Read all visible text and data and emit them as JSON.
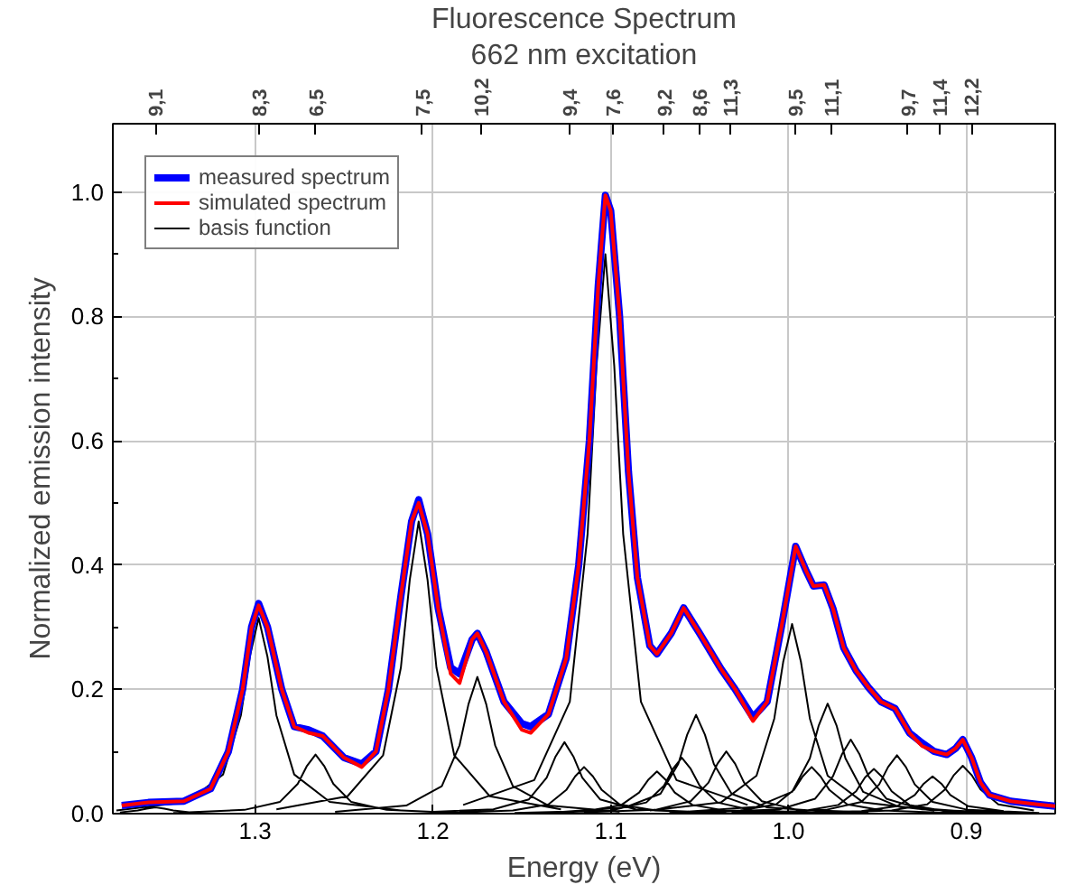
{
  "chart_data": {
    "type": "line",
    "title": "Fluorescence Spectrum",
    "subtitle": "662 nm excitation",
    "xlabel": "Energy (eV)",
    "ylabel": "Normalized emission intensity",
    "xlim": [
      1.38,
      0.85
    ],
    "ylim": [
      0,
      1.11
    ],
    "xticks": [
      1.3,
      1.2,
      1.1,
      {
        "value": 1.0,
        "label": "1.0"
      },
      0.9
    ],
    "yticks": [
      {
        "value": 0,
        "label": "0.0"
      },
      {
        "value": 0.1,
        "label": null
      },
      0.2,
      {
        "value": 0.3,
        "label": null
      },
      0.4,
      {
        "value": 0.5,
        "label": null
      },
      0.6,
      {
        "value": 0.7,
        "label": null
      },
      0.8,
      {
        "value": 0.9,
        "label": null
      },
      {
        "value": 1.0,
        "label": "1.0"
      }
    ],
    "annotations": [
      {
        "text": "9,1",
        "x": 1.356
      },
      {
        "text": "8,3",
        "x": 1.298
      },
      {
        "text": "6,5",
        "x": 1.266
      },
      {
        "text": "7,5",
        "x": 1.206
      },
      {
        "text": "10,2",
        "x": 1.173
      },
      {
        "text": "9,4",
        "x": 1.123
      },
      {
        "text": "7,6",
        "x": 1.099
      },
      {
        "text": "9,2",
        "x": 1.07
      },
      {
        "text": "8,6",
        "x": 1.05
      },
      {
        "text": "11,3",
        "x": 1.033
      },
      {
        "text": "9,5",
        "x": 0.996
      },
      {
        "text": "11,1",
        "x": 0.976
      },
      {
        "text": "9,7",
        "x": 0.933
      },
      {
        "text": "11,4",
        "x": 0.915
      },
      {
        "text": "12,2",
        "x": 0.897
      }
    ],
    "grid": true,
    "legend": "top left",
    "series": [
      {
        "name": "basis function",
        "color": "#000000",
        "x": [
          1.336,
          1.346,
          1.351,
          1.356,
          1.361,
          1.366,
          1.376,
          null,
          1.218,
          1.258,
          1.278,
          1.288,
          1.293,
          1.298,
          1.303,
          1.308,
          1.318,
          1.338,
          1.378,
          null,
          1.186,
          1.226,
          1.246,
          1.256,
          1.261,
          1.266,
          1.271,
          1.276,
          1.286,
          1.306,
          1.346,
          null,
          1.128,
          1.168,
          1.188,
          1.198,
          1.203,
          1.208,
          1.213,
          1.218,
          1.228,
          1.248,
          1.288,
          null,
          1.095,
          1.135,
          1.155,
          1.165,
          1.17,
          1.175,
          1.18,
          1.185,
          1.195,
          1.215,
          1.255,
          null,
          1.046,
          1.086,
          1.106,
          1.116,
          1.121,
          1.126,
          1.131,
          1.136,
          1.146,
          1.166,
          1.206,
          null,
          1.035,
          1.075,
          1.095,
          1.105,
          1.11,
          1.115,
          1.12,
          1.125,
          1.135,
          1.155,
          1.195,
          null,
          1.023,
          1.063,
          1.083,
          1.093,
          1.098,
          1.103,
          1.108,
          1.113,
          1.123,
          1.143,
          1.183,
          null,
          0.994,
          1.034,
          1.054,
          1.064,
          1.069,
          1.074,
          1.079,
          1.084,
          1.094,
          1.114,
          1.154,
          null,
          0.98,
          1.02,
          1.04,
          1.05,
          1.055,
          1.06,
          1.065,
          1.07,
          1.08,
          1.1,
          1.14,
          null,
          0.972,
          1.012,
          1.032,
          1.042,
          1.047,
          1.052,
          1.057,
          1.062,
          1.072,
          1.092,
          1.132,
          null,
          0.955,
          0.995,
          1.015,
          1.025,
          1.03,
          1.035,
          1.04,
          1.045,
          1.055,
          1.075,
          1.115,
          null,
          0.918,
          0.958,
          0.978,
          0.988,
          0.993,
          0.998,
          1.003,
          1.008,
          1.018,
          1.038,
          1.078,
          null,
          0.907,
          0.947,
          0.967,
          0.977,
          0.982,
          0.987,
          0.992,
          0.997,
          1.007,
          1.027,
          1.067,
          null,
          0.898,
          0.938,
          0.958,
          0.968,
          0.973,
          0.978,
          0.983,
          0.988,
          0.998,
          1.018,
          1.058,
          null,
          0.885,
          0.925,
          0.945,
          0.955,
          0.96,
          0.965,
          0.97,
          0.975,
          0.985,
          1.005,
          1.045,
          null,
          0.872,
          0.912,
          0.932,
          0.942,
          0.947,
          0.952,
          0.957,
          0.962,
          0.972,
          0.992,
          1.032,
          null,
          0.859,
          0.899,
          0.919,
          0.929,
          0.934,
          0.939,
          0.944,
          0.949,
          0.959,
          0.979,
          1.019,
          null,
          0.879,
          0.899,
          0.909,
          0.914,
          0.919,
          0.924,
          0.929,
          0.939,
          0.959,
          0.999,
          null,
          0.862,
          0.882,
          0.892,
          0.897,
          0.902,
          0.907,
          0.912,
          0.922,
          0.942,
          0.982
        ],
        "values": [
          0.002,
          0.005,
          0.008,
          0.01,
          0.008,
          0.005,
          0.002,
          null,
          0.005,
          0.019,
          0.063,
          0.158,
          0.252,
          0.315,
          0.252,
          0.158,
          0.063,
          0.019,
          0.005,
          null,
          0.001,
          0.006,
          0.019,
          0.048,
          0.076,
          0.095,
          0.076,
          0.048,
          0.019,
          0.006,
          0.001,
          null,
          0.007,
          0.028,
          0.094,
          0.235,
          0.376,
          0.47,
          0.376,
          0.235,
          0.094,
          0.028,
          0.007,
          null,
          0.003,
          0.013,
          0.044,
          0.11,
          0.176,
          0.22,
          0.176,
          0.11,
          0.044,
          0.013,
          0.003,
          null,
          0.002,
          0.007,
          0.023,
          0.058,
          0.092,
          0.115,
          0.092,
          0.058,
          0.023,
          0.007,
          0.002,
          null,
          0.001,
          0.005,
          0.015,
          0.038,
          0.06,
          0.075,
          0.06,
          0.038,
          0.015,
          0.005,
          0.001,
          null,
          0.014,
          0.054,
          0.18,
          0.45,
          0.72,
          0.9,
          0.72,
          0.45,
          0.18,
          0.054,
          0.014,
          null,
          0.001,
          0.004,
          0.014,
          0.034,
          0.054,
          0.068,
          0.054,
          0.034,
          0.014,
          0.004,
          0.001,
          null,
          0.001,
          0.005,
          0.018,
          0.045,
          0.072,
          0.09,
          0.072,
          0.045,
          0.018,
          0.005,
          0.001,
          null,
          0.002,
          0.01,
          0.032,
          0.08,
          0.127,
          0.159,
          0.127,
          0.08,
          0.032,
          0.01,
          0.002,
          null,
          0.002,
          0.006,
          0.02,
          0.05,
          0.08,
          0.1,
          0.08,
          0.05,
          0.02,
          0.006,
          0.002,
          null,
          0.005,
          0.018,
          0.061,
          0.153,
          0.244,
          0.305,
          0.244,
          0.153,
          0.061,
          0.018,
          0.005,
          null,
          0.001,
          0.005,
          0.015,
          0.038,
          0.06,
          0.075,
          0.06,
          0.038,
          0.015,
          0.005,
          0.001,
          null,
          0.003,
          0.011,
          0.035,
          0.089,
          0.142,
          0.177,
          0.142,
          0.089,
          0.035,
          0.011,
          0.003,
          null,
          0.002,
          0.007,
          0.024,
          0.06,
          0.095,
          0.119,
          0.095,
          0.06,
          0.024,
          0.007,
          0.002,
          null,
          0.001,
          0.004,
          0.014,
          0.036,
          0.058,
          0.072,
          0.058,
          0.036,
          0.014,
          0.004,
          0.001,
          null,
          0.001,
          0.006,
          0.019,
          0.047,
          0.075,
          0.094,
          0.075,
          0.047,
          0.019,
          0.006,
          0.001,
          null,
          0.004,
          0.012,
          0.03,
          0.048,
          0.06,
          0.048,
          0.03,
          0.012,
          0.004,
          0.001,
          null,
          0.005,
          0.015,
          0.039,
          0.062,
          0.077,
          0.062,
          0.039,
          0.015,
          0.005,
          0.001
        ]
      },
      {
        "name": "measured spectrum",
        "color": "#0000ff",
        "x": [
          1.375,
          1.36,
          1.34,
          1.325,
          1.315,
          1.307,
          1.302,
          1.298,
          1.293,
          1.285,
          1.278,
          1.27,
          1.262,
          1.25,
          1.24,
          1.232,
          1.225,
          1.218,
          1.212,
          1.208,
          1.203,
          1.197,
          1.19,
          1.185,
          1.178,
          1.175,
          1.17,
          1.16,
          1.15,
          1.145,
          1.135,
          1.125,
          1.118,
          1.112,
          1.107,
          1.103,
          1.1,
          1.095,
          1.09,
          1.085,
          1.078,
          1.074,
          1.066,
          1.059,
          1.05,
          1.038,
          1.03,
          1.02,
          1.012,
          1.004,
          0.996,
          0.99,
          0.986,
          0.98,
          0.975,
          0.969,
          0.962,
          0.955,
          0.948,
          0.94,
          0.932,
          0.925,
          0.918,
          0.911,
          0.906,
          0.902,
          0.897,
          0.892,
          0.887,
          0.875,
          0.86,
          0.85
        ],
        "values": [
          0.013,
          0.018,
          0.02,
          0.04,
          0.1,
          0.2,
          0.3,
          0.338,
          0.3,
          0.2,
          0.14,
          0.135,
          0.125,
          0.09,
          0.08,
          0.1,
          0.2,
          0.35,
          0.47,
          0.505,
          0.45,
          0.33,
          0.235,
          0.225,
          0.28,
          0.29,
          0.26,
          0.18,
          0.145,
          0.14,
          0.16,
          0.25,
          0.4,
          0.6,
          0.85,
          0.995,
          0.97,
          0.8,
          0.55,
          0.38,
          0.27,
          0.257,
          0.29,
          0.331,
          0.29,
          0.233,
          0.2,
          0.155,
          0.18,
          0.3,
          0.43,
          0.39,
          0.366,
          0.368,
          0.33,
          0.267,
          0.23,
          0.203,
          0.18,
          0.169,
          0.13,
          0.114,
          0.1,
          0.095,
          0.105,
          0.119,
          0.09,
          0.05,
          0.03,
          0.02,
          0.015,
          0.012
        ]
      },
      {
        "name": "simulated spectrum",
        "color": "#ff0000",
        "x": [
          1.375,
          1.36,
          1.34,
          1.325,
          1.315,
          1.307,
          1.302,
          1.298,
          1.293,
          1.285,
          1.278,
          1.27,
          1.262,
          1.25,
          1.24,
          1.232,
          1.225,
          1.218,
          1.212,
          1.208,
          1.203,
          1.197,
          1.19,
          1.185,
          1.178,
          1.175,
          1.17,
          1.16,
          1.15,
          1.145,
          1.135,
          1.125,
          1.118,
          1.112,
          1.107,
          1.103,
          1.1,
          1.095,
          1.09,
          1.085,
          1.078,
          1.074,
          1.066,
          1.059,
          1.05,
          1.038,
          1.03,
          1.02,
          1.012,
          1.004,
          0.996,
          0.99,
          0.986,
          0.98,
          0.975,
          0.969,
          0.962,
          0.955,
          0.948,
          0.94,
          0.932,
          0.925,
          0.918,
          0.911,
          0.906,
          0.902,
          0.897,
          0.892,
          0.887,
          0.875,
          0.86,
          0.85
        ],
        "values": [
          0.013,
          0.018,
          0.02,
          0.04,
          0.1,
          0.2,
          0.3,
          0.335,
          0.3,
          0.2,
          0.14,
          0.13,
          0.125,
          0.09,
          0.075,
          0.1,
          0.2,
          0.35,
          0.47,
          0.5,
          0.45,
          0.33,
          0.225,
          0.21,
          0.28,
          0.29,
          0.26,
          0.18,
          0.135,
          0.13,
          0.16,
          0.25,
          0.4,
          0.6,
          0.85,
          0.995,
          0.97,
          0.8,
          0.55,
          0.38,
          0.27,
          0.257,
          0.29,
          0.331,
          0.29,
          0.233,
          0.2,
          0.149,
          0.18,
          0.3,
          0.43,
          0.39,
          0.366,
          0.368,
          0.33,
          0.267,
          0.23,
          0.203,
          0.18,
          0.169,
          0.13,
          0.109,
          0.1,
          0.095,
          0.105,
          0.119,
          0.09,
          0.05,
          0.03,
          0.02,
          0.015,
          0.012
        ]
      }
    ]
  }
}
